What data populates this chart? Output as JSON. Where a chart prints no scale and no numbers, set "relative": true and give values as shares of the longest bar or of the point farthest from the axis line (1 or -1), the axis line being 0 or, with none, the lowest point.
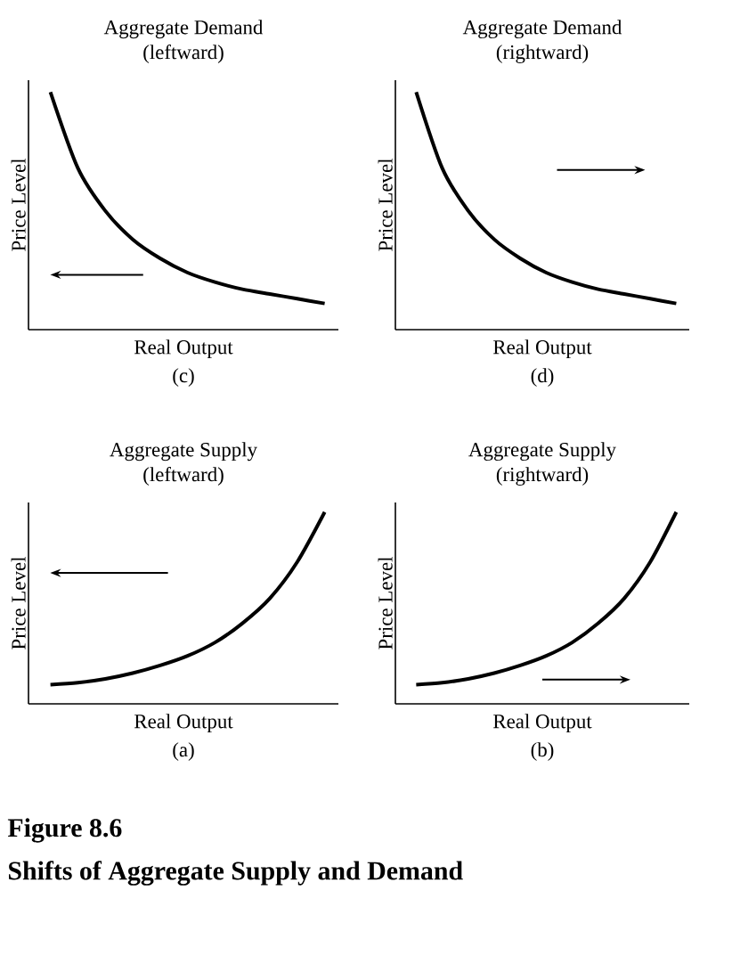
{
  "chart_data": [
    {
      "type": "line",
      "title": "Aggregate Demand",
      "subtitle": "(leftward)",
      "xlabel": "Real Output",
      "ylabel": "Price Level",
      "annotations": [
        "(c)"
      ],
      "relative": true,
      "color": "#000000",
      "categories": [
        null,
        null,
        null,
        null,
        null,
        null,
        null,
        null,
        null,
        null,
        null
      ],
      "values": [
        1,
        0.68,
        0.5,
        0.38,
        0.3,
        0.24,
        0.2,
        0.17,
        0.15,
        0.13,
        0.11
      ]
    },
    {
      "type": "line",
      "title": "Aggregate Demand",
      "subtitle": "(rightward)",
      "xlabel": "Real Output",
      "ylabel": "Price Level",
      "annotations": [
        "(d)"
      ],
      "relative": true,
      "color": "#000000",
      "categories": [
        null,
        null,
        null,
        null,
        null,
        null,
        null,
        null,
        null,
        null,
        null
      ],
      "values": [
        1,
        0.68,
        0.5,
        0.38,
        0.3,
        0.24,
        0.2,
        0.17,
        0.15,
        0.13,
        0.11
      ]
    },
    {
      "type": "line",
      "title": "Aggregate Supply",
      "subtitle": "(leftward)",
      "xlabel": "Real Output",
      "ylabel": "Price Level",
      "annotations": [
        "(a)"
      ],
      "relative": true,
      "color": "#000000",
      "categories": [
        null,
        null,
        null,
        null,
        null,
        null,
        null,
        null,
        null,
        null,
        null
      ],
      "values": [
        0.1,
        0.11,
        0.13,
        0.16,
        0.2,
        0.25,
        0.32,
        0.42,
        0.55,
        0.74,
        1
      ]
    },
    {
      "type": "line",
      "title": "Aggregate Supply",
      "subtitle": "(rightward)",
      "xlabel": "Real Output",
      "ylabel": "Price Level",
      "annotations": [
        "(b)",
        "Figure 8.6",
        "Shifts of Aggregate Supply and Demand"
      ],
      "relative": true,
      "color": "#000000",
      "categories": [
        null,
        null,
        null,
        null,
        null,
        null,
        null,
        null,
        null,
        null,
        null
      ],
      "values": [
        0.1,
        0.11,
        0.13,
        0.16,
        0.2,
        0.25,
        0.32,
        0.42,
        0.55,
        0.74,
        1
      ]
    }
  ]
}
